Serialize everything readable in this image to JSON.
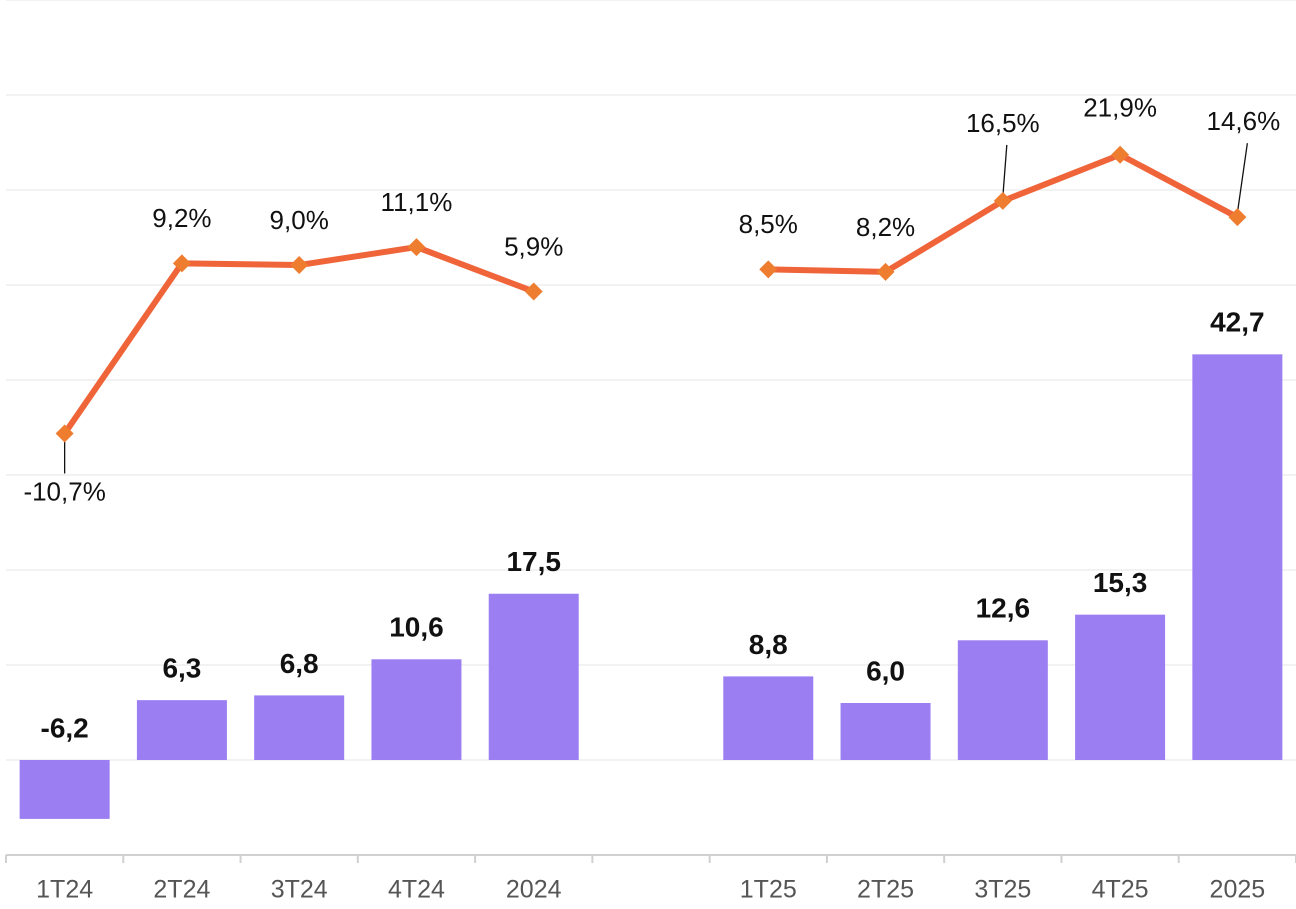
{
  "chart_data": {
    "type": "bar",
    "categories": [
      "1T24",
      "2T24",
      "3T24",
      "4T24",
      "2024",
      null,
      "1T25",
      "2T25",
      "3T25",
      "4T25",
      "2025"
    ],
    "series": [
      {
        "type": "bar",
        "color": "#9b7ef2",
        "values": [
          -6.2,
          6.3,
          6.8,
          10.6,
          17.5,
          null,
          8.8,
          6.0,
          12.6,
          15.3,
          42.7
        ],
        "value_labels": [
          "-6,2",
          "6,3",
          "6,8",
          "10,6",
          "17,5",
          null,
          "8,8",
          "6,0",
          "12,6",
          "15,3",
          "42,7"
        ]
      },
      {
        "type": "line",
        "axis": "y2",
        "color": "#f0643a",
        "marker_color": "#ef7d30",
        "values": [
          -10.7,
          9.2,
          9.0,
          11.1,
          5.9,
          null,
          8.5,
          8.2,
          16.5,
          21.9,
          14.6
        ],
        "value_labels": [
          "-10,7%",
          "9,2%",
          "9,0%",
          "11,1%",
          "5,9%",
          null,
          "8,5%",
          "8,2%",
          "16,5%",
          "21,9%",
          "14,6%"
        ]
      }
    ],
    "ylim": [
      -10,
      80
    ],
    "yticks": [
      -10,
      0,
      10,
      20,
      30,
      40,
      50,
      60,
      70,
      80
    ],
    "y2lim": [
      -60,
      40
    ],
    "grid": true
  }
}
